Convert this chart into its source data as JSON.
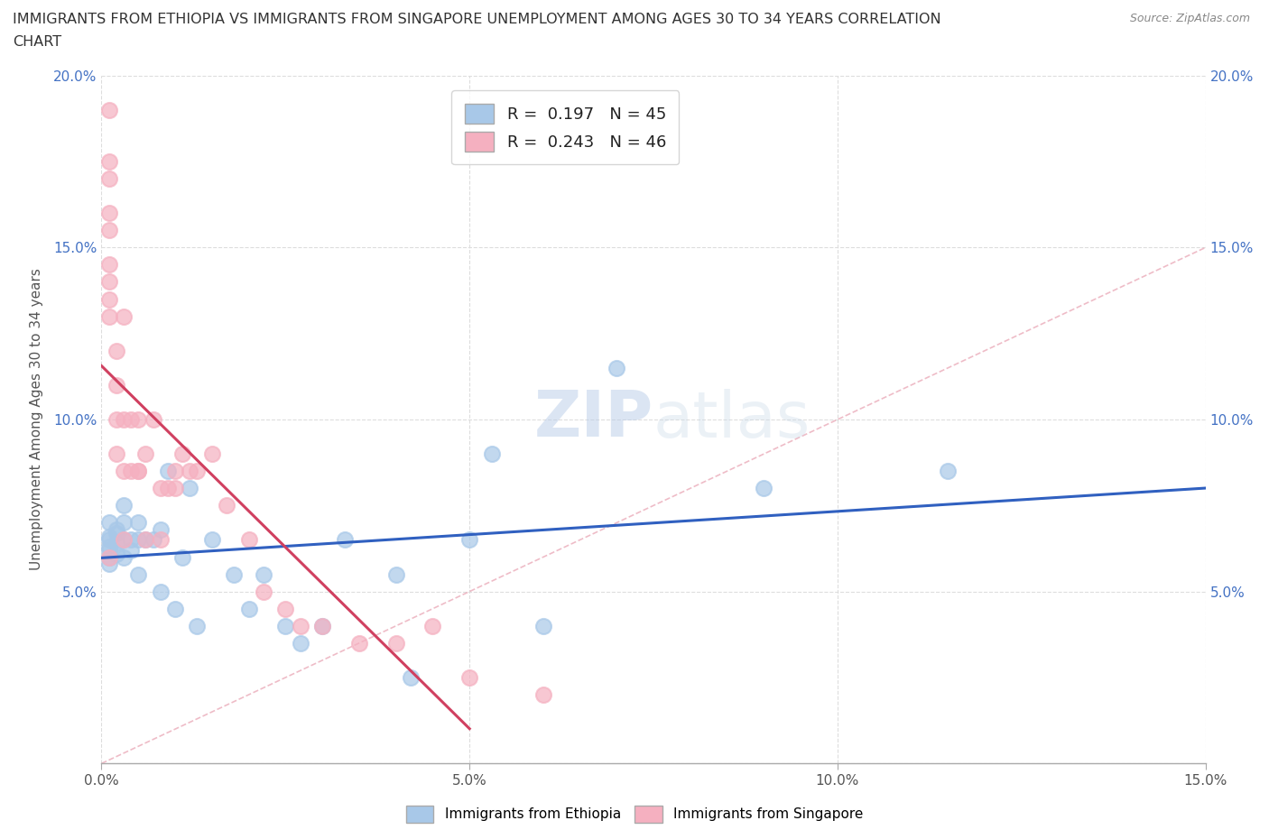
{
  "title_line1": "IMMIGRANTS FROM ETHIOPIA VS IMMIGRANTS FROM SINGAPORE UNEMPLOYMENT AMONG AGES 30 TO 34 YEARS CORRELATION",
  "title_line2": "CHART",
  "source_text": "Source: ZipAtlas.com",
  "ylabel": "Unemployment Among Ages 30 to 34 years",
  "xlim": [
    0.0,
    0.15
  ],
  "ylim": [
    0.0,
    0.2
  ],
  "xticks": [
    0.0,
    0.05,
    0.1,
    0.15
  ],
  "yticks": [
    0.0,
    0.05,
    0.1,
    0.15,
    0.2
  ],
  "ethiopia_color": "#a8c8e8",
  "singapore_color": "#f5b0c0",
  "ethiopia_line_color": "#3060c0",
  "singapore_line_color": "#d04060",
  "R_ethiopia": 0.197,
  "N_ethiopia": 45,
  "R_singapore": 0.243,
  "N_singapore": 46,
  "watermark_zip": "ZIP",
  "watermark_atlas": "atlas",
  "legend_ethiopia": "Immigrants from Ethiopia",
  "legend_singapore": "Immigrants from Singapore",
  "ethiopia_x": [
    0.001,
    0.001,
    0.001,
    0.001,
    0.001,
    0.001,
    0.001,
    0.002,
    0.002,
    0.002,
    0.002,
    0.003,
    0.003,
    0.003,
    0.003,
    0.004,
    0.004,
    0.005,
    0.005,
    0.005,
    0.006,
    0.007,
    0.008,
    0.008,
    0.009,
    0.01,
    0.011,
    0.012,
    0.013,
    0.015,
    0.018,
    0.02,
    0.022,
    0.025,
    0.027,
    0.03,
    0.033,
    0.04,
    0.042,
    0.05,
    0.053,
    0.06,
    0.07,
    0.09,
    0.115
  ],
  "ethiopia_y": [
    0.063,
    0.065,
    0.062,
    0.06,
    0.058,
    0.066,
    0.07,
    0.067,
    0.064,
    0.061,
    0.068,
    0.07,
    0.065,
    0.06,
    0.075,
    0.062,
    0.065,
    0.065,
    0.07,
    0.055,
    0.065,
    0.065,
    0.068,
    0.05,
    0.085,
    0.045,
    0.06,
    0.08,
    0.04,
    0.065,
    0.055,
    0.045,
    0.055,
    0.04,
    0.035,
    0.04,
    0.065,
    0.055,
    0.025,
    0.065,
    0.09,
    0.04,
    0.115,
    0.08,
    0.085
  ],
  "singapore_x": [
    0.001,
    0.001,
    0.001,
    0.001,
    0.001,
    0.001,
    0.001,
    0.001,
    0.001,
    0.001,
    0.002,
    0.002,
    0.002,
    0.002,
    0.003,
    0.003,
    0.003,
    0.003,
    0.004,
    0.004,
    0.005,
    0.005,
    0.005,
    0.006,
    0.006,
    0.007,
    0.008,
    0.008,
    0.009,
    0.01,
    0.01,
    0.011,
    0.012,
    0.013,
    0.015,
    0.017,
    0.02,
    0.022,
    0.025,
    0.027,
    0.03,
    0.035,
    0.04,
    0.045,
    0.05,
    0.06
  ],
  "singapore_y": [
    0.19,
    0.17,
    0.16,
    0.155,
    0.145,
    0.14,
    0.135,
    0.13,
    0.06,
    0.175,
    0.12,
    0.11,
    0.1,
    0.09,
    0.13,
    0.1,
    0.085,
    0.065,
    0.1,
    0.085,
    0.085,
    0.1,
    0.085,
    0.09,
    0.065,
    0.1,
    0.08,
    0.065,
    0.08,
    0.085,
    0.08,
    0.09,
    0.085,
    0.085,
    0.09,
    0.075,
    0.065,
    0.05,
    0.045,
    0.04,
    0.04,
    0.035,
    0.035,
    0.04,
    0.025,
    0.02
  ]
}
